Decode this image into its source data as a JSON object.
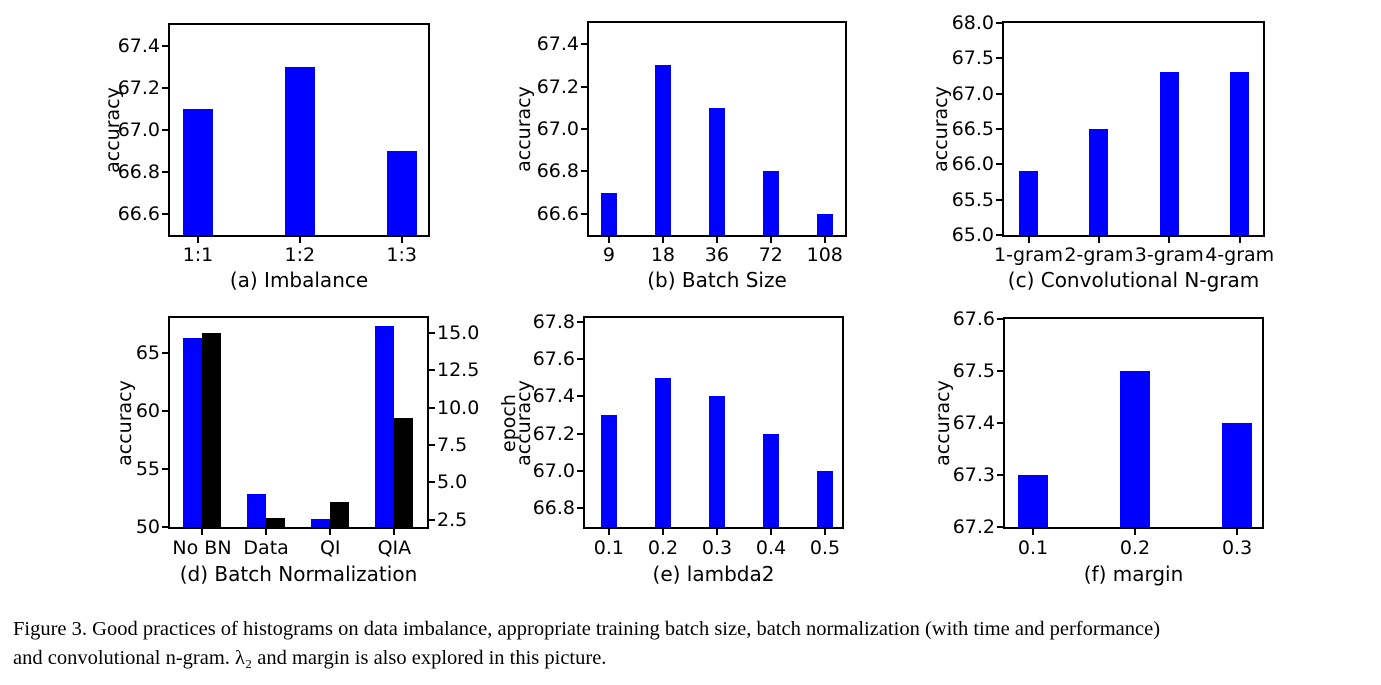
{
  "figure_caption": {
    "line1": "Figure 3. Good practices of histograms on data imbalance, appropriate training batch size, batch normalization (with time and performance)",
    "line2": "and convolutional n-gram. λ₂ and margin is also explored in this picture."
  },
  "colors": {
    "bar_primary": "#0000FF",
    "bar_secondary": "#000000",
    "axis": "#000000",
    "background": "#FFFFFF"
  },
  "chart_data": [
    {
      "id": "a",
      "type": "bar",
      "title": "(a) Imbalance",
      "ylabel": "accuracy",
      "categories": [
        "1:1",
        "1:2",
        "1:3"
      ],
      "values": [
        67.1,
        67.3,
        66.9
      ],
      "ylim": [
        66.5,
        67.5
      ],
      "yticks": [
        "66.6",
        "66.8",
        "67.0",
        "67.2",
        "67.4"
      ],
      "bar_color": "#0000FF",
      "grid": false,
      "legend": "none"
    },
    {
      "id": "b",
      "type": "bar",
      "title": "(b) Batch Size",
      "ylabel": "accuracy",
      "categories": [
        "9",
        "18",
        "36",
        "72",
        "108"
      ],
      "values": [
        66.7,
        67.3,
        67.1,
        66.8,
        66.6
      ],
      "ylim": [
        66.5,
        67.5
      ],
      "yticks": [
        "66.6",
        "66.8",
        "67.0",
        "67.2",
        "67.4"
      ],
      "bar_color": "#0000FF",
      "grid": false,
      "legend": "none"
    },
    {
      "id": "c",
      "type": "bar",
      "title": "(c) Convolutional N-gram",
      "ylabel": "accuracy",
      "categories": [
        "1-gram",
        "2-gram",
        "3-gram",
        "4-gram"
      ],
      "values": [
        65.9,
        66.5,
        67.3,
        67.3
      ],
      "ylim": [
        65.0,
        68.0
      ],
      "yticks": [
        "65.0",
        "65.5",
        "66.0",
        "66.5",
        "67.0",
        "67.5",
        "68.0"
      ],
      "bar_color": "#0000FF",
      "grid": false,
      "legend": "none"
    },
    {
      "id": "d",
      "type": "bar",
      "title": "(d) Batch Normalization",
      "categories": [
        "No BN",
        "Data",
        "QI",
        "QIA"
      ],
      "left_axis": {
        "label": "accuracy",
        "ylim": [
          50,
          68
        ],
        "yticks": [
          "50",
          "55",
          "60",
          "65"
        ]
      },
      "right_axis": {
        "label": "epoch",
        "ylim": [
          2,
          16
        ],
        "yticks": [
          "2.5",
          "5.0",
          "7.5",
          "10.0",
          "12.5",
          "15.0"
        ]
      },
      "series": [
        {
          "name": "accuracy",
          "axis": "left",
          "color": "#0000FF",
          "values": [
            66.3,
            52.8,
            50.7,
            67.3
          ]
        },
        {
          "name": "epoch",
          "axis": "right",
          "color": "#000000",
          "values": [
            15.0,
            2.6,
            3.7,
            9.3
          ]
        }
      ],
      "grid": false,
      "legend": "none"
    },
    {
      "id": "e",
      "type": "bar",
      "title": "(e) lambda2",
      "ylabel": "accuracy",
      "categories": [
        "0.1",
        "0.2",
        "0.3",
        "0.4",
        "0.5"
      ],
      "values": [
        67.3,
        67.5,
        67.4,
        67.2,
        67.0
      ],
      "ylim": [
        66.7,
        67.82
      ],
      "yticks": [
        "66.8",
        "67.0",
        "67.2",
        "67.4",
        "67.6",
        "67.8"
      ],
      "bar_color": "#0000FF",
      "grid": false,
      "legend": "none"
    },
    {
      "id": "f",
      "type": "bar",
      "title": "(f) margin",
      "ylabel": "accuracy",
      "categories": [
        "0.1",
        "0.2",
        "0.3"
      ],
      "values": [
        67.3,
        67.5,
        67.4
      ],
      "ylim": [
        67.2,
        67.6
      ],
      "yticks": [
        "67.2",
        "67.3",
        "67.4",
        "67.5",
        "67.6"
      ],
      "bar_color": "#0000FF",
      "grid": false,
      "legend": "none"
    }
  ]
}
